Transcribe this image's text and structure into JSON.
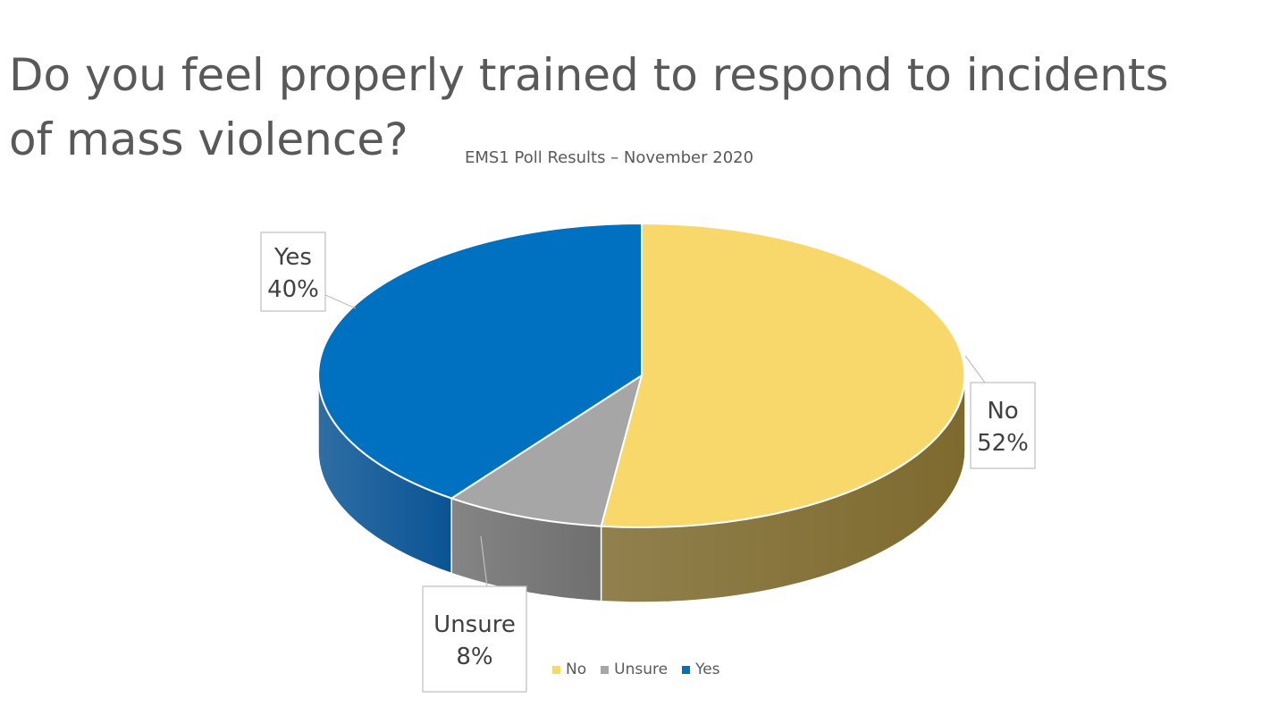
{
  "slide": {
    "title_line1": "Do you feel properly trained to respond to incidents",
    "title_line2": "of mass violence?"
  },
  "chart_data": {
    "type": "pie",
    "subtitle": "EMS1 Poll Results – November 2020",
    "categories": [
      "No",
      "Unsure",
      "Yes"
    ],
    "values": [
      52,
      8,
      40
    ],
    "labels": [
      "52%",
      "8%",
      "40%"
    ],
    "colors": {
      "No": "#F9D86B",
      "Unsure": "#A6A6A6",
      "Yes": "#0070C0"
    },
    "side_colors": {
      "No": "#7E6A2E",
      "Unsure": "#6F6F6F",
      "Yes": "#0A5494"
    },
    "legend": [
      "No",
      "Unsure",
      "Yes"
    ],
    "legend_position": "bottom",
    "style": "3d"
  }
}
